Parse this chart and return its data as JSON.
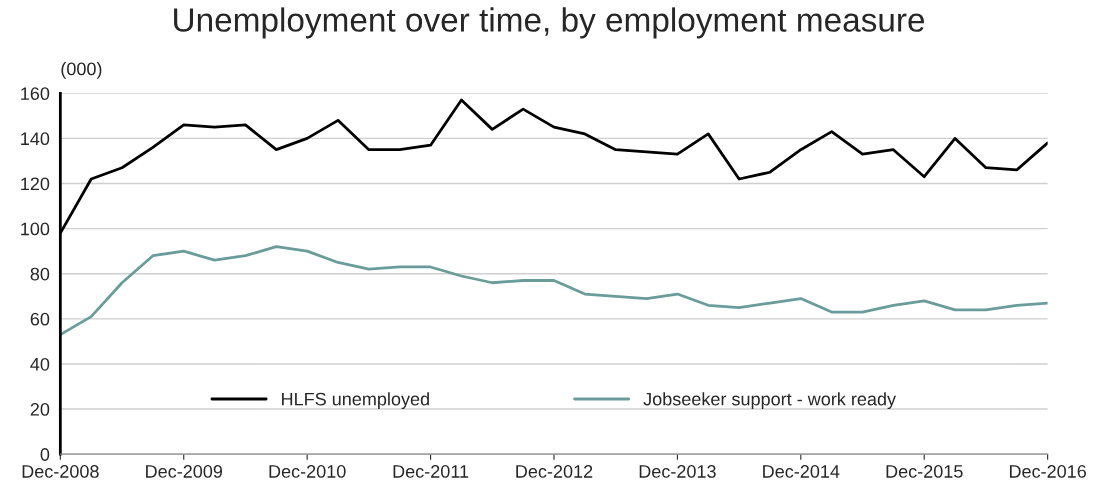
{
  "chart_data": {
    "type": "line",
    "title": "Unemployment over time, by employment measure",
    "ylabel": "(000)",
    "categories": [
      "Dec-2008",
      null,
      null,
      null,
      "Dec-2009",
      null,
      null,
      null,
      "Dec-2010",
      null,
      null,
      null,
      "Dec-2011",
      null,
      null,
      null,
      "Dec-2012",
      null,
      null,
      null,
      "Dec-2013",
      null,
      null,
      null,
      "Dec-2014",
      null,
      null,
      null,
      "Dec-2015",
      null,
      null,
      null,
      "Dec-2016"
    ],
    "series": [
      {
        "name": "HLFS unemployed",
        "color": "#000000",
        "values": [
          98,
          122,
          127,
          136,
          146,
          145,
          146,
          135,
          140,
          148,
          135,
          135,
          137,
          157,
          144,
          153,
          145,
          142,
          135,
          134,
          133,
          142,
          122,
          125,
          135,
          143,
          133,
          135,
          123,
          140,
          127,
          126,
          138
        ]
      },
      {
        "name": "Jobseeker support - work ready",
        "color": "#6a9c9c",
        "values": [
          53,
          61,
          76,
          88,
          90,
          86,
          88,
          92,
          90,
          85,
          82,
          83,
          83,
          79,
          76,
          77,
          77,
          71,
          70,
          69,
          71,
          66,
          65,
          67,
          69,
          63,
          63,
          66,
          68,
          64,
          64,
          66,
          67
        ]
      }
    ],
    "ylim": [
      0,
      160
    ],
    "yticks": [
      0,
      20,
      40,
      60,
      80,
      100,
      120,
      140,
      160
    ],
    "grid": "y",
    "legend": "bottom",
    "marker": "none",
    "line_style": "solid"
  }
}
